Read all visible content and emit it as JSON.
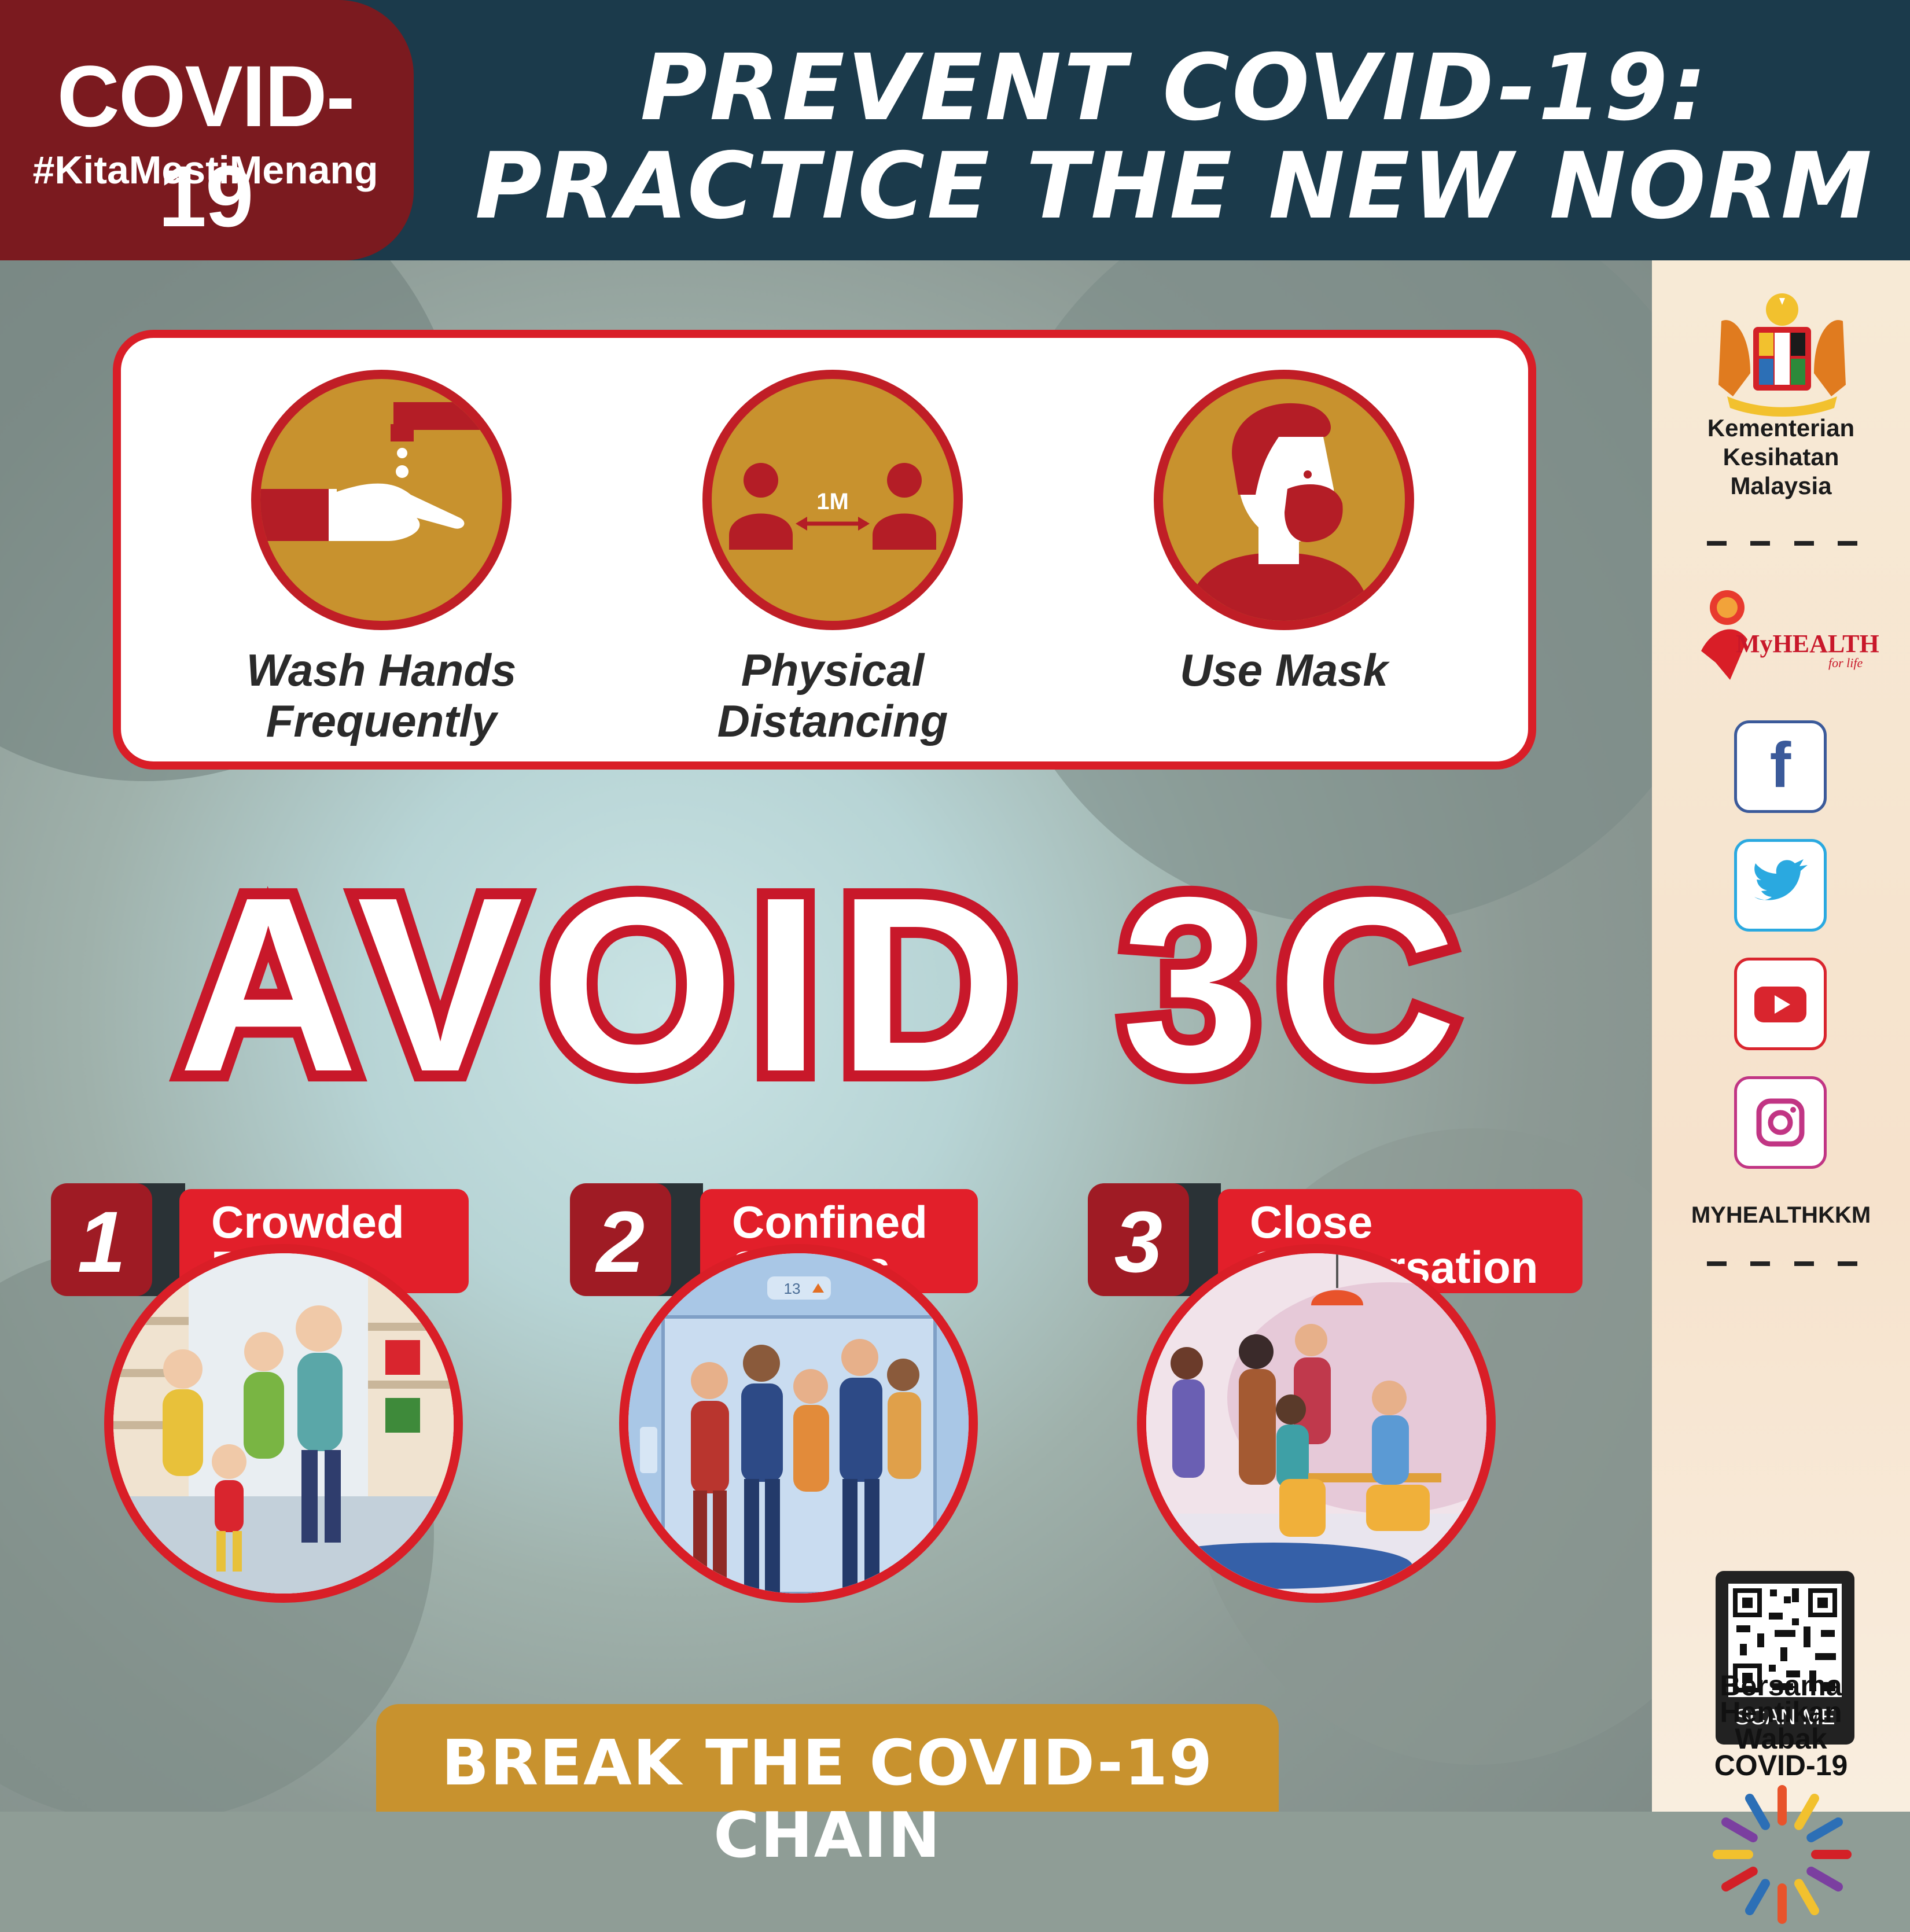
{
  "header": {
    "badge_title": "COVID-19",
    "badge_hashtag": "#KitaMestiMenang",
    "title_line1": "PREVENT COVID-19:",
    "title_line2": "PRACTICE THE NEW NORM"
  },
  "practices": [
    {
      "label_line1": "Wash Hands",
      "label_line2": "Frequently",
      "icon": "hand-washing-icon"
    },
    {
      "label_line1": "Physical",
      "label_line2": "Distancing",
      "icon": "physical-distancing-icon",
      "distance_text": "1M"
    },
    {
      "label_line1": "Use Mask",
      "label_line2": "",
      "icon": "face-mask-icon"
    }
  ],
  "avoid": {
    "heading": "AVOID 3C"
  },
  "three_c": [
    {
      "number": "1",
      "label_line1": "Crowded",
      "label_line2": "Places",
      "scene": "supermarket-crowd-illustration"
    },
    {
      "number": "2",
      "label_line1": "Confined",
      "label_line2": "Spaces",
      "scene": "elevator-crowd-illustration",
      "floor_display": "13"
    },
    {
      "number": "3",
      "label_line1": "Close",
      "label_line2": "Conversation",
      "scene": "group-conversation-illustration"
    }
  ],
  "footer": {
    "banner": "BREAK THE COVID-19 CHAIN"
  },
  "sidebar": {
    "ministry_line1": "Kementerian",
    "ministry_line2": "Kesihatan",
    "ministry_line3": "Malaysia",
    "myhealth_logo_text": "MyHEALTH",
    "myhealth_tagline": "for life",
    "social": [
      "facebook-icon",
      "twitter-icon",
      "youtube-icon",
      "instagram-icon"
    ],
    "handle": "MYHEALTHKKM",
    "qr_label": "SCAN ME",
    "campaign_line1": "Bersama",
    "campaign_line2": "Hentikan",
    "campaign_line3": "Wabak",
    "campaign_line4": "COVID-19"
  },
  "colors": {
    "header_navy": "#1b3a4b",
    "badge_maroon": "#7b1a1f",
    "accent_red": "#d91e27",
    "gold": "#c8922e",
    "dark_red": "#9f1b24"
  }
}
